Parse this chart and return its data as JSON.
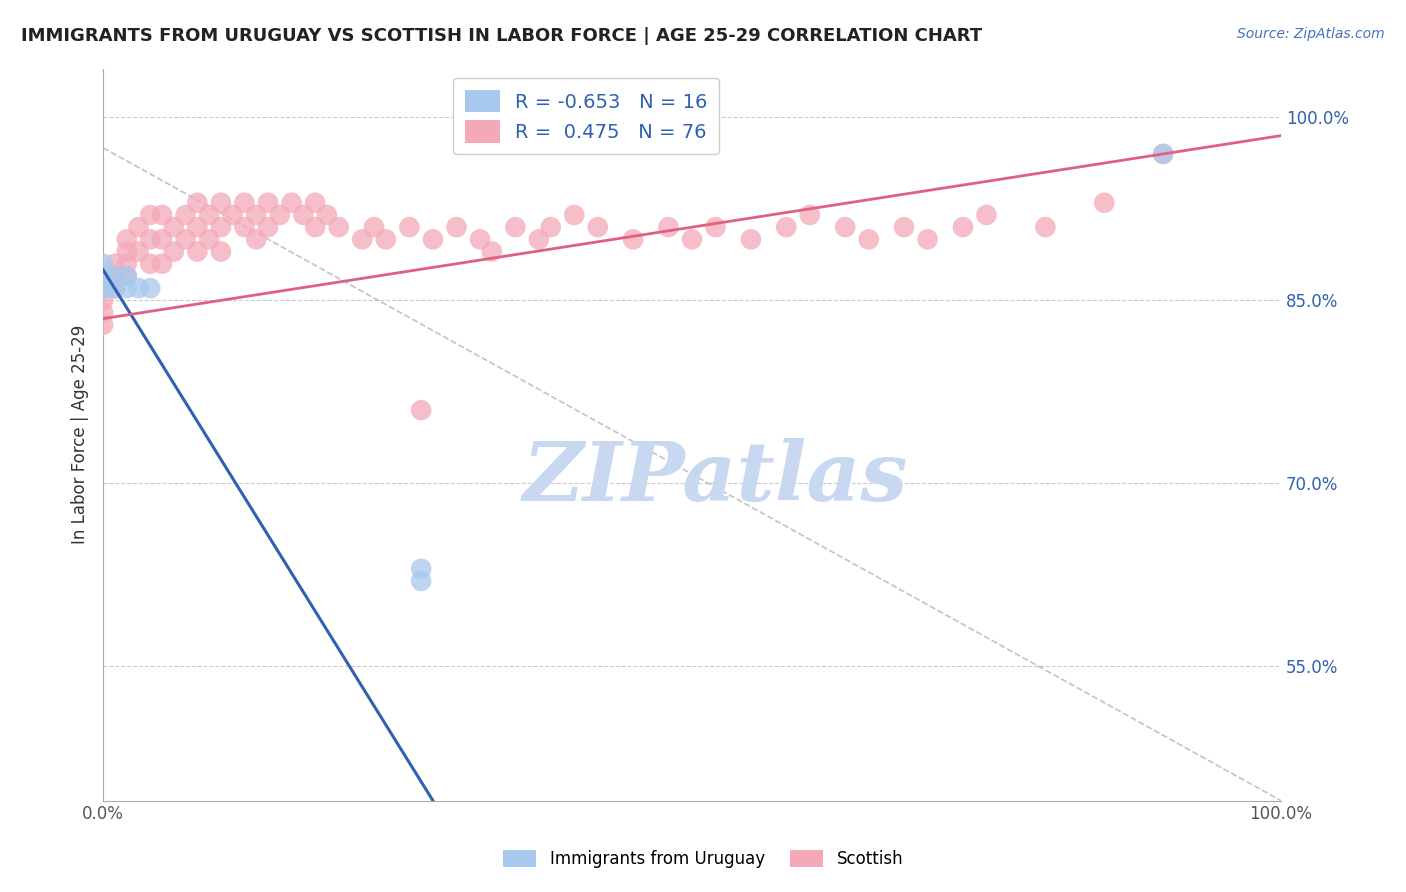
{
  "title": "IMMIGRANTS FROM URUGUAY VS SCOTTISH IN LABOR FORCE | AGE 25-29 CORRELATION CHART",
  "source": "Source: ZipAtlas.com",
  "ylabel": "In Labor Force | Age 25-29",
  "xlim": [
    0.0,
    1.0
  ],
  "ylim": [
    0.44,
    1.04
  ],
  "yticks": [
    0.55,
    0.7,
    0.85,
    1.0
  ],
  "ytick_labels": [
    "55.0%",
    "70.0%",
    "85.0%",
    "100.0%"
  ],
  "r_uruguay": -0.653,
  "n_uruguay": 16,
  "r_scottish": 0.475,
  "n_scottish": 76,
  "color_uruguay": "#A8C8EE",
  "color_scottish": "#F4A8B8",
  "line_color_uruguay": "#3060B0",
  "line_color_scottish": "#E06080",
  "watermark_text": "ZIPatlas",
  "watermark_color": "#C8D8F0",
  "background_color": "#FFFFFF",
  "legend_r_color": "#3060B0",
  "legend_n_color": "#333333",
  "source_color": "#4472C4",
  "tick_label_color": "#3060B0",
  "uruguay_x": [
    0.0,
    0.0,
    0.0,
    0.0,
    0.0,
    0.0,
    0.0,
    0.01,
    0.01,
    0.02,
    0.02,
    0.03,
    0.04,
    0.27,
    0.27,
    0.9
  ],
  "uruguay_y": [
    0.87,
    0.86,
    0.86,
    0.86,
    0.86,
    0.87,
    0.88,
    0.86,
    0.87,
    0.86,
    0.87,
    0.86,
    0.86,
    0.62,
    0.63,
    0.97
  ],
  "scottish_x": [
    0.0,
    0.0,
    0.0,
    0.0,
    0.0,
    0.01,
    0.01,
    0.01,
    0.02,
    0.02,
    0.02,
    0.02,
    0.03,
    0.03,
    0.04,
    0.04,
    0.04,
    0.05,
    0.05,
    0.05,
    0.06,
    0.06,
    0.07,
    0.07,
    0.08,
    0.08,
    0.08,
    0.09,
    0.09,
    0.1,
    0.1,
    0.1,
    0.11,
    0.12,
    0.12,
    0.13,
    0.13,
    0.14,
    0.14,
    0.15,
    0.16,
    0.17,
    0.18,
    0.18,
    0.19,
    0.2,
    0.22,
    0.23,
    0.24,
    0.26,
    0.27,
    0.28,
    0.3,
    0.32,
    0.33,
    0.35,
    0.37,
    0.38,
    0.4,
    0.42,
    0.45,
    0.48,
    0.5,
    0.52,
    0.55,
    0.58,
    0.6,
    0.63,
    0.65,
    0.68,
    0.7,
    0.73,
    0.75,
    0.8,
    0.85,
    0.9
  ],
  "scottish_y": [
    0.87,
    0.86,
    0.85,
    0.84,
    0.83,
    0.88,
    0.87,
    0.86,
    0.9,
    0.89,
    0.88,
    0.87,
    0.91,
    0.89,
    0.92,
    0.9,
    0.88,
    0.92,
    0.9,
    0.88,
    0.91,
    0.89,
    0.92,
    0.9,
    0.93,
    0.91,
    0.89,
    0.92,
    0.9,
    0.93,
    0.91,
    0.89,
    0.92,
    0.93,
    0.91,
    0.92,
    0.9,
    0.93,
    0.91,
    0.92,
    0.93,
    0.92,
    0.93,
    0.91,
    0.92,
    0.91,
    0.9,
    0.91,
    0.9,
    0.91,
    0.76,
    0.9,
    0.91,
    0.9,
    0.89,
    0.91,
    0.9,
    0.91,
    0.92,
    0.91,
    0.9,
    0.91,
    0.9,
    0.91,
    0.9,
    0.91,
    0.92,
    0.91,
    0.9,
    0.91,
    0.9,
    0.91,
    0.92,
    0.91,
    0.93,
    0.97
  ],
  "uru_line_x0": 0.0,
  "uru_line_x1": 0.28,
  "uru_line_y0": 0.875,
  "uru_line_y1": 0.44,
  "sco_line_x0": 0.0,
  "sco_line_x1": 1.0,
  "sco_line_y0": 0.835,
  "sco_line_y1": 0.985,
  "dash_line_x0": 0.0,
  "dash_line_x1": 1.0,
  "dash_line_y0": 0.975,
  "dash_line_y1": 0.44
}
